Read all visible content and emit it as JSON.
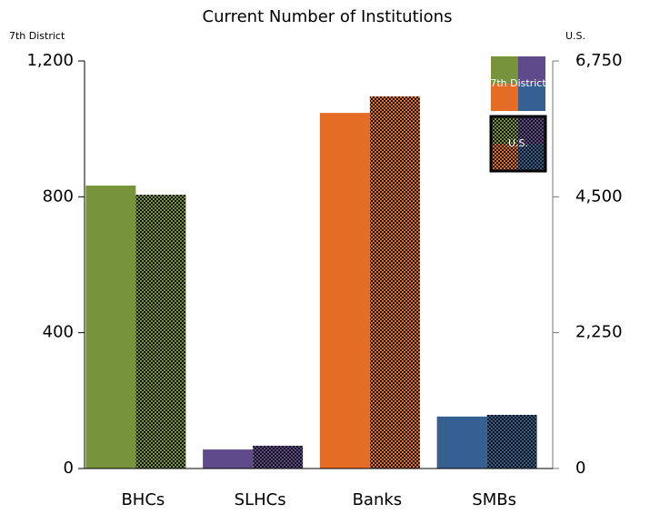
{
  "chart_data": {
    "type": "bar",
    "title": "Current Number of Institutions",
    "y_label": "7th District",
    "y2_label": "U.S.",
    "categories": [
      "BHCs",
      "SLHCs",
      "Banks",
      "SMBs"
    ],
    "category_colors": [
      "#77933c",
      "#5f4b8b",
      "#e46c25",
      "#376092"
    ],
    "series": [
      {
        "name": "7th District",
        "values": [
          833,
          56,
          1047,
          153
        ]
      },
      {
        "name": "U.S.",
        "axis": "y2",
        "pattern": "dots",
        "values": [
          4535,
          377,
          6162,
          889
        ]
      }
    ],
    "ylim": [
      0,
      1200
    ],
    "yticks": [
      0,
      400,
      800,
      {
        "value": 1200,
        "label": "1,200"
      }
    ],
    "y2lim": [
      0,
      6750
    ],
    "y2ticks": [
      0,
      {
        "value": 2250,
        "label": "2,250"
      },
      {
        "value": 4500,
        "label": "4,500"
      },
      {
        "value": 6750,
        "label": "6,750"
      }
    ],
    "legend": "top-right"
  }
}
